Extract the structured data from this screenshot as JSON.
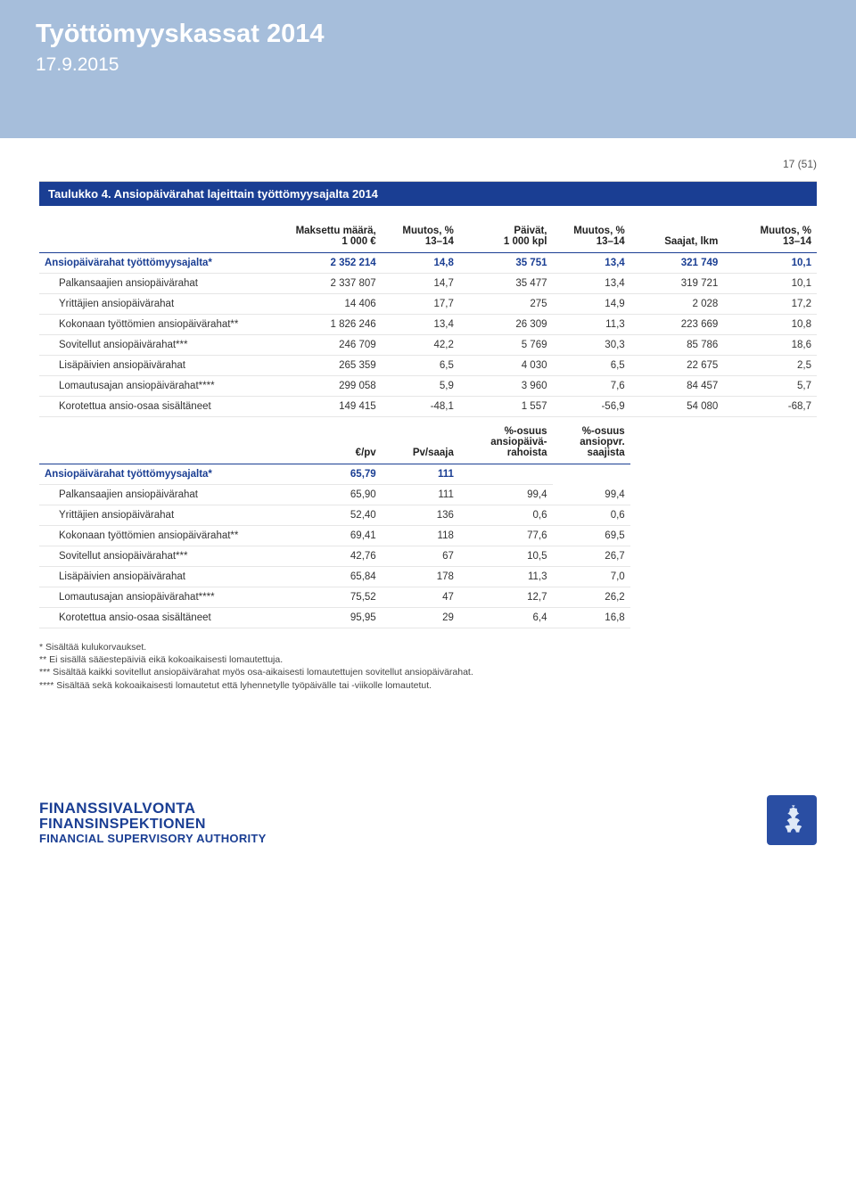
{
  "hero": {
    "title": "Työttömyyskassat 2014",
    "date": "17.9.2015"
  },
  "pagenum": "17 (51)",
  "table_title": "Taulukko 4. Ansiopäivärahat lajeittain työttömyysajalta 2014",
  "table1": {
    "columns": [
      {
        "label": "",
        "class": "left",
        "width": "30%"
      },
      {
        "label": "Maksettu määrä,\n1 000 €",
        "class": "",
        "width": "14%"
      },
      {
        "label": "Muutos, %\n13–14",
        "class": "",
        "width": "10%"
      },
      {
        "label": "Päivät,\n1 000 kpl",
        "class": "",
        "width": "12%"
      },
      {
        "label": "Muutos, %\n13–14",
        "class": "",
        "width": "10%"
      },
      {
        "label": "Saajat, lkm",
        "class": "",
        "width": "12%"
      },
      {
        "label": "Muutos, %\n13–14",
        "class": "",
        "width": "12%"
      }
    ],
    "rows": [
      {
        "bold": true,
        "cells": [
          "Ansiopäivärahat työttömyysajalta*",
          "2 352 214",
          "14,8",
          "35 751",
          "13,4",
          "321 749",
          "10,1"
        ]
      },
      {
        "indent": true,
        "cells": [
          "Palkansaajien ansiopäivärahat",
          "2 337 807",
          "14,7",
          "35 477",
          "13,4",
          "319 721",
          "10,1"
        ]
      },
      {
        "indent": true,
        "cells": [
          "Yrittäjien ansiopäivärahat",
          "14 406",
          "17,7",
          "275",
          "14,9",
          "2 028",
          "17,2"
        ]
      },
      {
        "indent": true,
        "cells": [
          "Kokonaan työttömien ansiopäivärahat**",
          "1 826 246",
          "13,4",
          "26 309",
          "11,3",
          "223 669",
          "10,8"
        ]
      },
      {
        "indent": true,
        "cells": [
          "Sovitellut ansiopäivärahat***",
          "246 709",
          "42,2",
          "5 769",
          "30,3",
          "85 786",
          "18,6"
        ]
      },
      {
        "indent": true,
        "cells": [
          "Lisäpäivien ansiopäivärahat",
          "265 359",
          "6,5",
          "4 030",
          "6,5",
          "22 675",
          "2,5"
        ]
      },
      {
        "indent": true,
        "cells": [
          "Lomautusajan ansiopäivärahat****",
          "299 058",
          "5,9",
          "3 960",
          "7,6",
          "84 457",
          "5,7"
        ]
      },
      {
        "indent": true,
        "cells": [
          "Korotettua ansio-osaa sisältäneet",
          "149 415",
          "-48,1",
          "1 557",
          "-56,9",
          "54 080",
          "-68,7"
        ]
      }
    ]
  },
  "table2": {
    "columns": [
      {
        "label": "",
        "class": "left",
        "width": "30%"
      },
      {
        "label": "€/pv",
        "class": "",
        "width": "14%"
      },
      {
        "label": "Pv/saaja",
        "class": "",
        "width": "10%"
      },
      {
        "label": "%-osuus\nansiopäivä-\nrahoista",
        "class": "",
        "width": "12%"
      },
      {
        "label": "%-osuus\nansiopvr.\nsaajista",
        "class": "",
        "width": "10%"
      },
      {
        "label": "",
        "class": "",
        "width": "12%"
      },
      {
        "label": "",
        "class": "",
        "width": "12%"
      }
    ],
    "rows": [
      {
        "bold": true,
        "cells": [
          "Ansiopäivärahat työttömyysajalta*",
          "65,79",
          "111",
          "",
          "",
          "",
          ""
        ]
      },
      {
        "indent": true,
        "cells": [
          "Palkansaajien ansiopäivärahat",
          "65,90",
          "111",
          "99,4",
          "99,4",
          "",
          ""
        ]
      },
      {
        "indent": true,
        "cells": [
          "Yrittäjien ansiopäivärahat",
          "52,40",
          "136",
          "0,6",
          "0,6",
          "",
          ""
        ]
      },
      {
        "indent": true,
        "cells": [
          "Kokonaan työttömien ansiopäivärahat**",
          "69,41",
          "118",
          "77,6",
          "69,5",
          "",
          ""
        ]
      },
      {
        "indent": true,
        "cells": [
          "Sovitellut ansiopäivärahat***",
          "42,76",
          "67",
          "10,5",
          "26,7",
          "",
          ""
        ]
      },
      {
        "indent": true,
        "cells": [
          "Lisäpäivien ansiopäivärahat",
          "65,84",
          "178",
          "11,3",
          "7,0",
          "",
          ""
        ]
      },
      {
        "indent": true,
        "cells": [
          "Lomautusajan ansiopäivärahat****",
          "75,52",
          "47",
          "12,7",
          "26,2",
          "",
          ""
        ]
      },
      {
        "indent": true,
        "cells": [
          "Korotettua ansio-osaa sisältäneet",
          "95,95",
          "29",
          "6,4",
          "16,8",
          "",
          ""
        ]
      }
    ]
  },
  "footnotes": [
    "* Sisältää kulukorvaukset.",
    "** Ei sisällä sääestepäiviä eikä kokoaikaisesti lomautettuja.",
    "*** Sisältää kaikki sovitellut ansiopäivärahat myös osa-aikaisesti lomautettujen sovitellut ansiopäivärahat.",
    "**** Sisältää sekä kokoaikaisesti lomautetut että lyhennetylle työpäivälle tai -viikolle lomautetut."
  ],
  "org": {
    "l1": "FINANSSIVALVONTA",
    "l2": "FINANSINSPEKTIONEN",
    "l3": "FINANCIAL SUPERVISORY AUTHORITY"
  },
  "colors": {
    "hero_bg": "#a6bedb",
    "brand_blue": "#1a3e93",
    "row_border": "#e6e6e6"
  }
}
